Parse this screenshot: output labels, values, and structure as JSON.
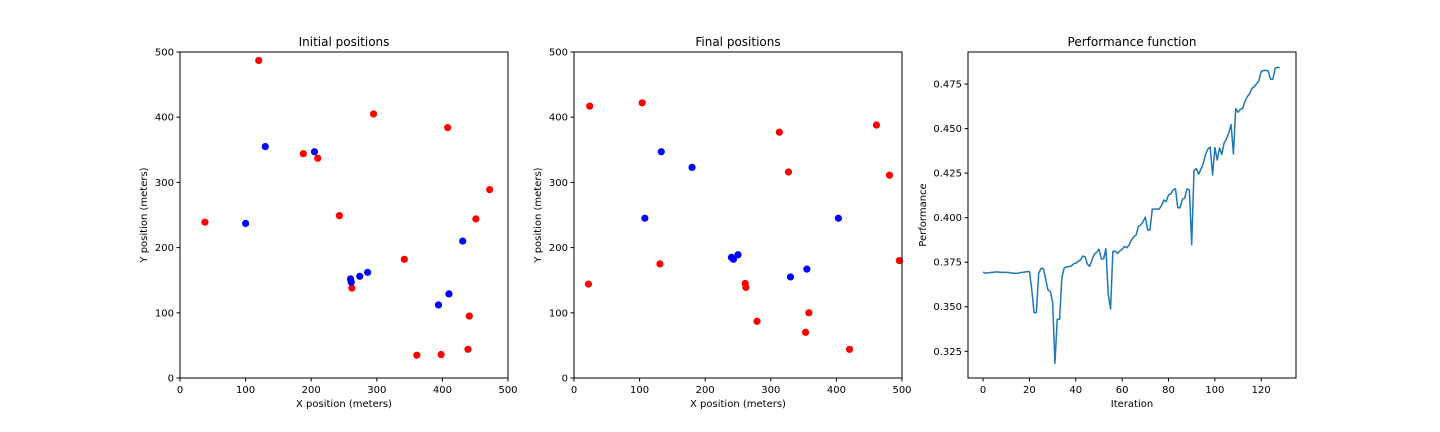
{
  "colors": {
    "series_a": "#ff0000",
    "series_b": "#0000ff",
    "performance_line": "#1f77b4"
  },
  "chart_data": [
    {
      "type": "scatter",
      "title": "Initial positions",
      "xlabel": "X position (meters)",
      "ylabel": "Y position (meters)",
      "xlim": [
        0,
        500
      ],
      "ylim": [
        0,
        500
      ],
      "xticks": [
        0,
        100,
        200,
        300,
        400,
        500
      ],
      "yticks": [
        0,
        100,
        200,
        300,
        400,
        500
      ],
      "grid": false,
      "series": [
        {
          "color": "#ff0000",
          "points": [
            [
              120,
              487
            ],
            [
              295,
              405
            ],
            [
              408,
              384
            ],
            [
              188,
              344
            ],
            [
              210,
              337
            ],
            [
              38,
              239
            ],
            [
              243,
              249
            ],
            [
              472,
              289
            ],
            [
              451,
              244
            ],
            [
              342,
              182
            ],
            [
              262,
              138
            ],
            [
              441,
              95
            ],
            [
              439,
              44
            ],
            [
              398,
              36
            ],
            [
              361,
              35
            ]
          ]
        },
        {
          "color": "#0000ff",
          "points": [
            [
              130,
              355
            ],
            [
              205,
              347
            ],
            [
              100,
              237
            ],
            [
              431,
              210
            ],
            [
              260,
              152
            ],
            [
              274,
              156
            ],
            [
              286,
              162
            ],
            [
              261,
              147
            ],
            [
              410,
              129
            ],
            [
              394,
              112
            ]
          ]
        }
      ]
    },
    {
      "type": "scatter",
      "title": "Final positions",
      "xlabel": "X position (meters)",
      "ylabel": "Y position (meters)",
      "xlim": [
        0,
        500
      ],
      "ylim": [
        0,
        500
      ],
      "xticks": [
        0,
        100,
        200,
        300,
        400,
        500
      ],
      "yticks": [
        0,
        100,
        200,
        300,
        400,
        500
      ],
      "grid": false,
      "series": [
        {
          "color": "#ff0000",
          "points": [
            [
              24,
              417
            ],
            [
              104,
              422
            ],
            [
              313,
              377
            ],
            [
              461,
              388
            ],
            [
              327,
              316
            ],
            [
              481,
              311
            ],
            [
              496,
              180
            ],
            [
              22,
              144
            ],
            [
              131,
              175
            ],
            [
              261,
              145
            ],
            [
              262,
              139
            ],
            [
              358,
              100
            ],
            [
              279,
              87
            ],
            [
              353,
              70
            ],
            [
              420,
              44
            ]
          ]
        },
        {
          "color": "#0000ff",
          "points": [
            [
              133,
              347
            ],
            [
              180,
              323
            ],
            [
              108,
              245
            ],
            [
              403,
              245
            ],
            [
              240,
              185
            ],
            [
              243,
              182
            ],
            [
              250,
              189
            ],
            [
              355,
              167
            ],
            [
              330,
              155
            ]
          ]
        }
      ]
    },
    {
      "type": "line",
      "title": "Performance function",
      "xlabel": "Iteration",
      "ylabel": "Performance",
      "xlim": [
        -6.5,
        135
      ],
      "ylim": [
        0.31,
        0.493
      ],
      "xticks": [
        0,
        20,
        40,
        60,
        80,
        100,
        120
      ],
      "yticks": [
        0.325,
        0.35,
        0.375,
        0.4,
        0.425,
        0.45,
        0.475
      ],
      "ytick_labels": [
        "0.325",
        "0.350",
        "0.375",
        "0.400",
        "0.425",
        "0.450",
        "0.475"
      ],
      "grid": false,
      "x": [
        0,
        1,
        2,
        3,
        4,
        5,
        6,
        7,
        8,
        9,
        10,
        11,
        12,
        13,
        14,
        15,
        16,
        17,
        18,
        19,
        20,
        21,
        22,
        23,
        24,
        25,
        26,
        27,
        28,
        29,
        30,
        31,
        32,
        33,
        34,
        35,
        36,
        37,
        38,
        39,
        40,
        41,
        42,
        43,
        44,
        45,
        46,
        47,
        48,
        49,
        50,
        51,
        52,
        53,
        54,
        55,
        56,
        57,
        58,
        59,
        60,
        61,
        62,
        63,
        64,
        65,
        66,
        67,
        68,
        69,
        70,
        71,
        72,
        73,
        74,
        75,
        76,
        77,
        78,
        79,
        80,
        81,
        82,
        83,
        84,
        85,
        86,
        87,
        88,
        89,
        90,
        91,
        92,
        93,
        94,
        95,
        96,
        97,
        98,
        99,
        100,
        101,
        102,
        103,
        104,
        105,
        106,
        107,
        108,
        109,
        110,
        111,
        112,
        113,
        114,
        115,
        116,
        117,
        118,
        119,
        120,
        121,
        122,
        123,
        124,
        125,
        126,
        127,
        128
      ],
      "y": [
        0.3695,
        0.3688,
        0.369,
        0.3692,
        0.3692,
        0.3695,
        0.3695,
        0.3694,
        0.3693,
        0.3693,
        0.3693,
        0.3692,
        0.369,
        0.3688,
        0.3688,
        0.3688,
        0.3692,
        0.3693,
        0.3695,
        0.3697,
        0.3698,
        0.3598,
        0.3467,
        0.3467,
        0.3688,
        0.3716,
        0.3714,
        0.3656,
        0.3594,
        0.3587,
        0.3527,
        0.3183,
        0.3429,
        0.3429,
        0.3664,
        0.3718,
        0.3724,
        0.3726,
        0.3728,
        0.3741,
        0.3745,
        0.3755,
        0.3762,
        0.3784,
        0.3781,
        0.374,
        0.3727,
        0.3762,
        0.3796,
        0.3805,
        0.3823,
        0.3768,
        0.3769,
        0.3825,
        0.357,
        0.3487,
        0.3811,
        0.3812,
        0.3799,
        0.3813,
        0.3823,
        0.3839,
        0.3831,
        0.3847,
        0.3874,
        0.3893,
        0.3902,
        0.3951,
        0.3958,
        0.3978,
        0.4003,
        0.3931,
        0.3931,
        0.4048,
        0.4048,
        0.4049,
        0.4049,
        0.4069,
        0.4099,
        0.409,
        0.4128,
        0.4133,
        0.4156,
        0.4162,
        0.4056,
        0.4056,
        0.4104,
        0.411,
        0.4162,
        0.4156,
        0.3849,
        0.4265,
        0.4276,
        0.4244,
        0.4273,
        0.4305,
        0.4356,
        0.4385,
        0.4396,
        0.424,
        0.4393,
        0.4324,
        0.4391,
        0.4355,
        0.442,
        0.4441,
        0.4477,
        0.4522,
        0.4358,
        0.4613,
        0.4592,
        0.4609,
        0.4613,
        0.4654,
        0.4679,
        0.4697,
        0.4726,
        0.4735,
        0.4752,
        0.4768,
        0.4821,
        0.4826,
        0.4827,
        0.4824,
        0.4778,
        0.4777,
        0.4838,
        0.4844,
        0.4842
      ]
    }
  ]
}
